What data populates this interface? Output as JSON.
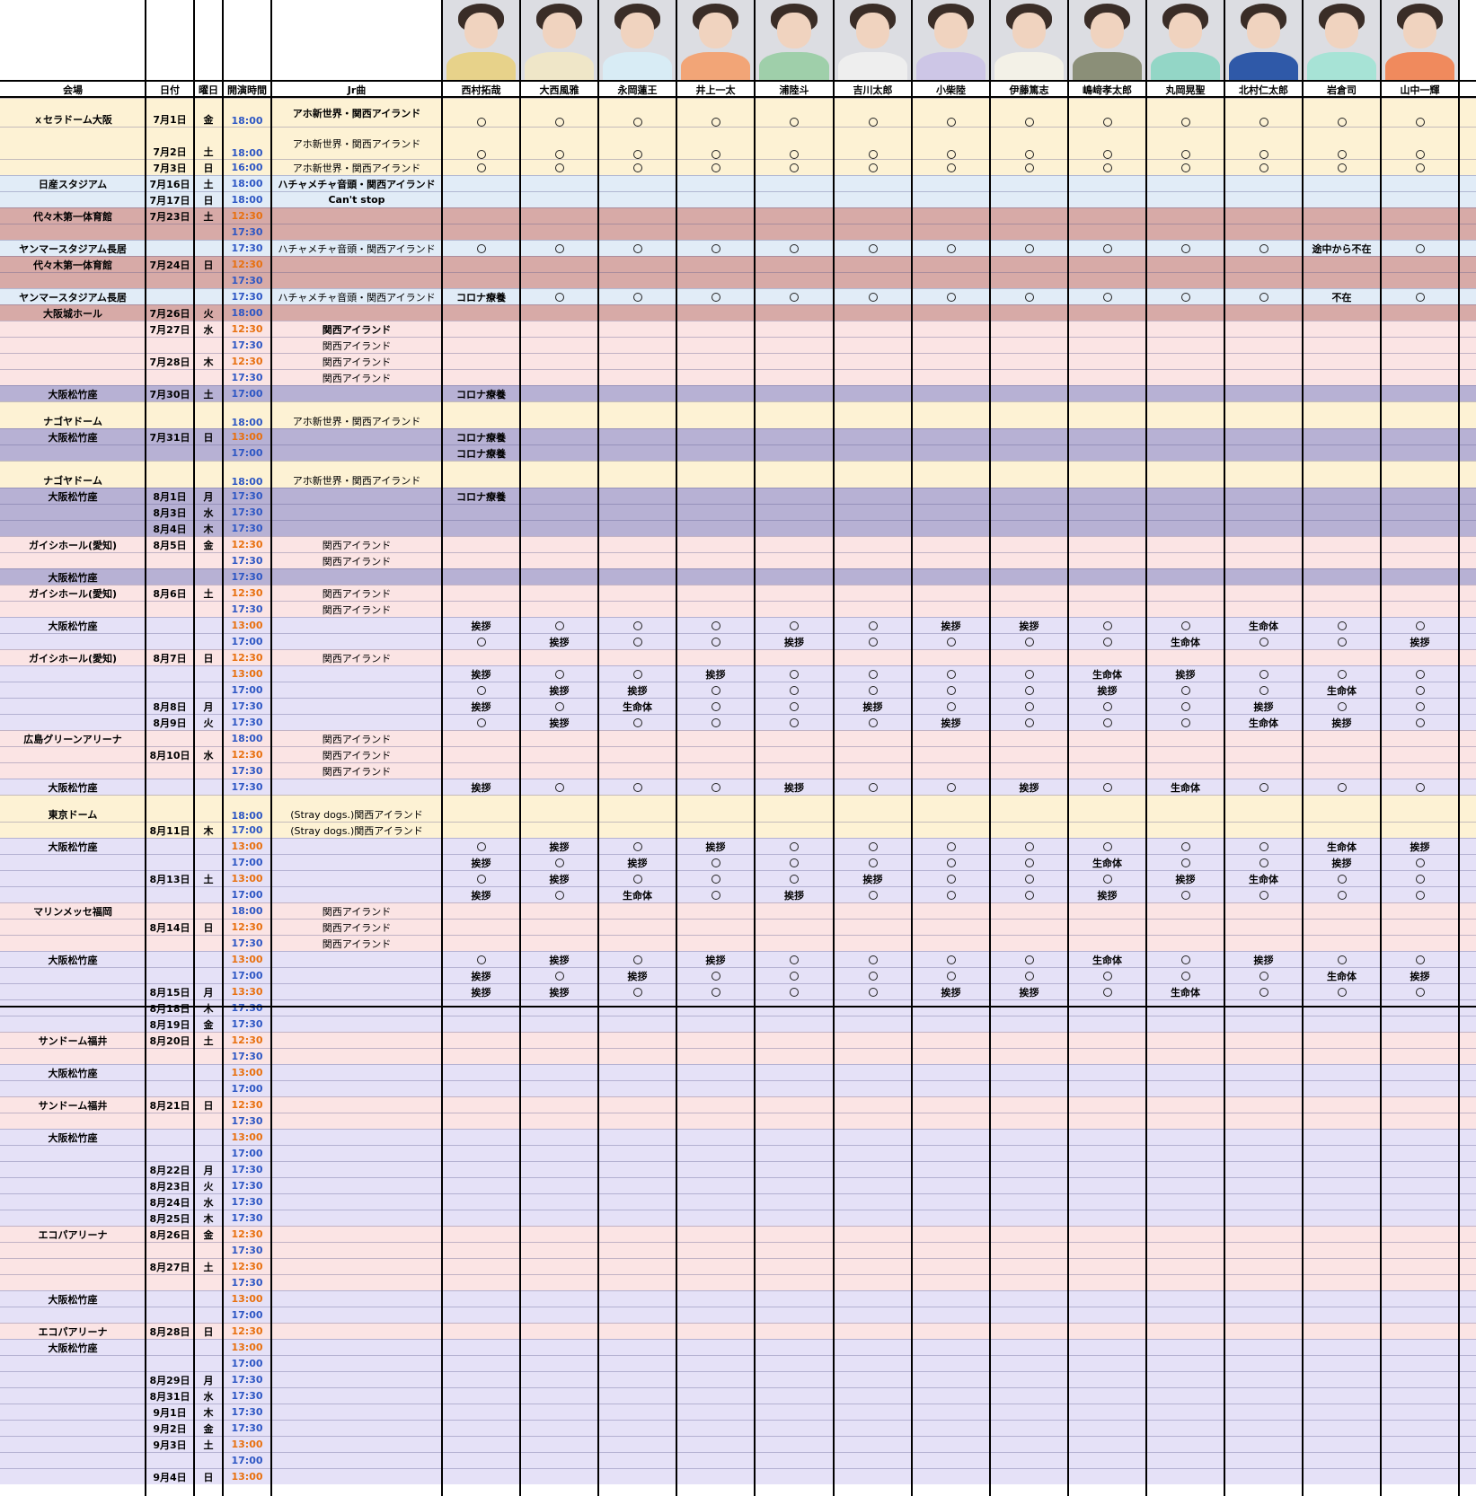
{
  "colors": {
    "yellow": "#fdf2d4",
    "blue": "#e1ecf7",
    "brown": "#d7aaa7",
    "pink": "#fbe4e4",
    "purple": "#b7b1d4",
    "lavender": "#e5e1f7",
    "white": "#ffffff",
    "blue_time": "#2e57c4",
    "orange_time": "#e8700f"
  },
  "headers": {
    "venue": "会場",
    "date": "日付",
    "weekday": "曜日",
    "time": "開演時間",
    "song": "Jr曲"
  },
  "members": [
    "西村拓哉",
    "大西風雅",
    "永岡蓮王",
    "井上一太",
    "浦陸斗",
    "吉川太郎",
    "小柴陸",
    "伊藤篤志",
    "嶋﨑孝太郎",
    "丸岡晃聖",
    "北村仁太郎",
    "岩倉司",
    "山中一輝"
  ],
  "photos": [
    {
      "name": "photo-nishimura",
      "shirt": "#e7d28a"
    },
    {
      "name": "photo-onishi",
      "shirt": "#efe6c8"
    },
    {
      "name": "photo-nagaoka",
      "shirt": "#d8ecf5"
    },
    {
      "name": "photo-inoue",
      "shirt": "#f2a577"
    },
    {
      "name": "photo-ura",
      "shirt": "#9fcfaa"
    },
    {
      "name": "photo-yoshikawa",
      "shirt": "#eeeeee"
    },
    {
      "name": "photo-koshiba",
      "shirt": "#cdc6e6"
    },
    {
      "name": "photo-ito",
      "shirt": "#f3f1e7"
    },
    {
      "name": "photo-shimazaki",
      "shirt": "#8b8f78"
    },
    {
      "name": "photo-maruoka",
      "shirt": "#93d6c6"
    },
    {
      "name": "photo-kitamura",
      "shirt": "#2f59a8"
    },
    {
      "name": "photo-iwakura",
      "shirt": "#a7e3d6"
    },
    {
      "name": "photo-yamanaka",
      "shirt": "#f08a5d"
    }
  ],
  "rows": [
    {
      "h": 32,
      "bg": "yellow",
      "venue": "ｘセラドーム大阪",
      "date": "7月1日",
      "day": "金",
      "time": "18:00",
      "tc": "blue",
      "song": "アホ新世界・関西アイランド",
      "sb": 1,
      "m": "OOOOOOOOOOOOO"
    },
    {
      "h": 36,
      "bg": "yellow",
      "date": "7月2日",
      "day": "土",
      "time": "18:00",
      "tc": "blue",
      "song": "アホ新世界・関西アイランド",
      "m": "OOOOOOOOOOOOO"
    },
    {
      "h": 18,
      "bg": "yellow",
      "date": "7月3日",
      "day": "日",
      "time": "16:00",
      "tc": "blue",
      "song": "アホ新世界・関西アイランド",
      "m": "OOOOOOOOOOOOO"
    },
    {
      "h": 18,
      "bg": "blue",
      "venue": "日産スタジアム",
      "date": "7月16日",
      "day": "土",
      "time": "18:00",
      "tc": "blue",
      "song": "ハチャメチャ音頭・関西アイランド",
      "sb": 1
    },
    {
      "h": 18,
      "bg": "blue",
      "date": "7月17日",
      "day": "日",
      "time": "18:00",
      "tc": "blue",
      "song": "Can't stop",
      "sb": 1
    },
    {
      "h": 18,
      "bg": "brown",
      "venue": "代々木第一体育館",
      "date": "7月23日",
      "day": "土",
      "time": "12:30",
      "tc": "orange"
    },
    {
      "h": 18,
      "bg": "brown",
      "time": "17:30",
      "tc": "blue"
    },
    {
      "h": 18,
      "bg": "blue",
      "venue": "ヤンマースタジアム長居",
      "time": "17:30",
      "tc": "blue",
      "song": "ハチャメチャ音頭・関西アイランド",
      "m": "OOOOOOOOOOO|途中から不在|O"
    },
    {
      "h": 18,
      "bg": "brown",
      "venue": "代々木第一体育館",
      "date": "7月24日",
      "day": "日",
      "time": "12:30",
      "tc": "orange"
    },
    {
      "h": 18,
      "bg": "brown",
      "time": "17:30",
      "tc": "blue"
    },
    {
      "h": 18,
      "bg": "blue",
      "venue": "ヤンマースタジアム長居",
      "time": "17:30",
      "tc": "blue",
      "song": "ハチャメチャ音頭・関西アイランド",
      "m": "コロナ療養|OOOOOOOOOO|不在|O"
    },
    {
      "h": 18,
      "bg": "brown",
      "venue": "大阪城ホール",
      "date": "7月26日",
      "day": "火",
      "time": "18:00",
      "tc": "blue"
    },
    {
      "h": 18,
      "bg": "pink",
      "date": "7月27日",
      "day": "水",
      "time": "12:30",
      "tc": "orange",
      "song": "関西アイランド",
      "sb": 1
    },
    {
      "h": 18,
      "bg": "pink",
      "time": "17:30",
      "tc": "blue",
      "song": "関西アイランド"
    },
    {
      "h": 18,
      "bg": "pink",
      "date": "7月28日",
      "day": "木",
      "time": "12:30",
      "tc": "orange",
      "song": "関西アイランド"
    },
    {
      "h": 18,
      "bg": "pink",
      "time": "17:30",
      "tc": "blue",
      "song": "関西アイランド"
    },
    {
      "h": 18,
      "bg": "purple",
      "venue": "大阪松竹座",
      "date": "7月30日",
      "day": "土",
      "time": "17:00",
      "tc": "blue",
      "m": "コロナ療養|"
    },
    {
      "h": 30,
      "bg": "yellow",
      "venue": "ナゴヤドーム",
      "time": "18:00",
      "tc": "blue",
      "song": "アホ新世界・関西アイランド"
    },
    {
      "h": 18,
      "bg": "purple",
      "venue": "大阪松竹座",
      "date": "7月31日",
      "day": "日",
      "time": "13:00",
      "tc": "orange",
      "m": "コロナ療養|"
    },
    {
      "h": 18,
      "bg": "purple",
      "time": "17:00",
      "tc": "blue",
      "m": "コロナ療養|"
    },
    {
      "h": 30,
      "bg": "yellow",
      "venue": "ナゴヤドーム",
      "time": "18:00",
      "tc": "blue",
      "song": "アホ新世界・関西アイランド"
    },
    {
      "h": 18,
      "bg": "purple",
      "venue": "大阪松竹座",
      "date": "8月1日",
      "day": "月",
      "time": "17:30",
      "tc": "blue",
      "m": "コロナ療養|"
    },
    {
      "h": 18,
      "bg": "purple",
      "date": "8月3日",
      "day": "水",
      "time": "17:30",
      "tc": "blue"
    },
    {
      "h": 18,
      "bg": "purple",
      "date": "8月4日",
      "day": "木",
      "time": "17:30",
      "tc": "blue"
    },
    {
      "h": 18,
      "bg": "pink",
      "venue": "ガイシホール(愛知)",
      "date": "8月5日",
      "day": "金",
      "time": "12:30",
      "tc": "orange",
      "song": "関西アイランド"
    },
    {
      "h": 18,
      "bg": "pink",
      "time": "17:30",
      "tc": "blue",
      "song": "関西アイランド"
    },
    {
      "h": 18,
      "bg": "purple",
      "venue": "大阪松竹座",
      "time": "17:30",
      "tc": "blue"
    },
    {
      "h": 18,
      "bg": "pink",
      "venue": "ガイシホール(愛知)",
      "date": "8月6日",
      "day": "土",
      "time": "12:30",
      "tc": "orange",
      "song": "関西アイランド"
    },
    {
      "h": 18,
      "bg": "pink",
      "time": "17:30",
      "tc": "blue",
      "song": "関西アイランド"
    },
    {
      "h": 18,
      "bg": "lavender",
      "venue": "大阪松竹座",
      "time": "13:00",
      "tc": "orange",
      "m": "挨拶|OOOO|O|挨拶|挨拶|OO|生命体|OO"
    },
    {
      "h": 18,
      "bg": "lavender",
      "time": "17:00",
      "tc": "blue",
      "m": "O|挨拶|OO|挨拶|OOOO|生命体|OO|挨拶"
    },
    {
      "h": 18,
      "bg": "pink",
      "venue": "ガイシホール(愛知)",
      "date": "8月7日",
      "day": "日",
      "time": "12:30",
      "tc": "orange",
      "song": "関西アイランド"
    },
    {
      "h": 18,
      "bg": "lavender",
      "time": "13:00",
      "tc": "orange",
      "m": "挨拶|OO|挨拶|OOOO|生命体|挨拶|OOO"
    },
    {
      "h": 18,
      "bg": "lavender",
      "time": "17:00",
      "tc": "blue",
      "m": "O|挨拶|挨拶|OOOOO|挨拶|OO|生命体|O"
    },
    {
      "h": 18,
      "bg": "lavender",
      "date": "8月8日",
      "day": "月",
      "time": "17:30",
      "tc": "blue",
      "m": "挨拶|O|生命体|OO|挨拶|OOOO|挨拶|OO"
    },
    {
      "h": 18,
      "bg": "lavender",
      "date": "8月9日",
      "day": "火",
      "time": "17:30",
      "tc": "blue",
      "m": "O|挨拶|OOOO|挨拶|OOO|生命体|挨拶|O"
    },
    {
      "h": 18,
      "bg": "pink",
      "venue": "広島グリーンアリーナ",
      "time": "18:00",
      "tc": "blue",
      "song": "関西アイランド"
    },
    {
      "h": 18,
      "bg": "pink",
      "date": "8月10日",
      "day": "水",
      "time": "12:30",
      "tc": "orange",
      "song": "関西アイランド"
    },
    {
      "h": 18,
      "bg": "pink",
      "time": "17:30",
      "tc": "blue",
      "song": "関西アイランド"
    },
    {
      "h": 18,
      "bg": "lavender",
      "venue": "大阪松竹座",
      "time": "17:30",
      "tc": "blue",
      "m": "挨拶|OOO|挨拶|OO|挨拶|O|生命体|OOO"
    },
    {
      "h": 30,
      "bg": "yellow",
      "venue": "東京ドーム",
      "time": "18:00",
      "tc": "blue",
      "song": "(Stray dogs.)関西アイランド"
    },
    {
      "h": 18,
      "bg": "yellow",
      "date": "8月11日",
      "day": "木",
      "time": "17:00",
      "tc": "blue",
      "song": "(Stray dogs.)関西アイランド"
    },
    {
      "h": 18,
      "bg": "lavender",
      "venue": "大阪松竹座",
      "time": "13:00",
      "tc": "orange",
      "m": "O|挨拶|O|挨拶|OOOOOOO|生命体|挨拶"
    },
    {
      "h": 18,
      "bg": "lavender",
      "time": "17:00",
      "tc": "blue",
      "m": "挨拶|O|挨拶|OOOOO|生命体|OO|挨拶|O"
    },
    {
      "h": 18,
      "bg": "lavender",
      "date": "8月13日",
      "day": "土",
      "time": "13:00",
      "tc": "orange",
      "m": "O|挨拶|OOO|挨拶|OOO|挨拶|生命体|OO"
    },
    {
      "h": 18,
      "bg": "lavender",
      "time": "17:00",
      "tc": "blue",
      "m": "挨拶|O|生命体|O|挨拶|OOO|挨拶|OOOO"
    },
    {
      "h": 18,
      "bg": "pink",
      "venue": "マリンメッセ福岡",
      "time": "18:00",
      "tc": "blue",
      "song": "関西アイランド"
    },
    {
      "h": 18,
      "bg": "pink",
      "date": "8月14日",
      "day": "日",
      "time": "12:30",
      "tc": "orange",
      "song": "関西アイランド"
    },
    {
      "h": 18,
      "bg": "pink",
      "time": "17:30",
      "tc": "blue",
      "song": "関西アイランド"
    },
    {
      "h": 18,
      "bg": "lavender",
      "venue": "大阪松竹座",
      "time": "13:00",
      "tc": "orange",
      "m": "O|挨拶|O|挨拶|OOOO|生命体|O|挨拶|OO"
    },
    {
      "h": 18,
      "bg": "lavender",
      "time": "17:00",
      "tc": "blue",
      "m": "挨拶|O|挨拶|OOOOOOOO|生命体|挨拶"
    },
    {
      "h": 18,
      "bg": "lavender",
      "date": "8月15日",
      "day": "月",
      "time": "13:30",
      "tc": "orange",
      "m": "挨拶|挨拶|OOOO|挨拶|挨拶|O|生命体|OOO"
    },
    {
      "h": 18,
      "bg": "lavender",
      "date": "8月18日",
      "day": "木",
      "time": "17:30",
      "tc": "blue"
    },
    {
      "h": 18,
      "bg": "lavender",
      "date": "8月19日",
      "day": "金",
      "time": "17:30",
      "tc": "blue"
    },
    {
      "h": 18,
      "bg": "pink",
      "venue": "サンドーム福井",
      "date": "8月20日",
      "day": "土",
      "time": "12:30",
      "tc": "orange"
    },
    {
      "h": 18,
      "bg": "pink",
      "time": "17:30",
      "tc": "blue"
    },
    {
      "h": 18,
      "bg": "lavender",
      "venue": "大阪松竹座",
      "time": "13:00",
      "tc": "orange"
    },
    {
      "h": 18,
      "bg": "lavender",
      "time": "17:00",
      "tc": "blue"
    },
    {
      "h": 18,
      "bg": "pink",
      "venue": "サンドーム福井",
      "date": "8月21日",
      "day": "日",
      "time": "12:30",
      "tc": "orange"
    },
    {
      "h": 18,
      "bg": "pink",
      "time": "17:30",
      "tc": "blue"
    },
    {
      "h": 18,
      "bg": "lavender",
      "venue": "大阪松竹座",
      "time": "13:00",
      "tc": "orange"
    },
    {
      "h": 18,
      "bg": "lavender",
      "time": "17:00",
      "tc": "blue"
    },
    {
      "h": 18,
      "bg": "lavender",
      "date": "8月22日",
      "day": "月",
      "time": "17:30",
      "tc": "blue"
    },
    {
      "h": 18,
      "bg": "lavender",
      "date": "8月23日",
      "day": "火",
      "time": "17:30",
      "tc": "blue"
    },
    {
      "h": 18,
      "bg": "lavender",
      "date": "8月24日",
      "day": "水",
      "time": "17:30",
      "tc": "blue"
    },
    {
      "h": 18,
      "bg": "lavender",
      "date": "8月25日",
      "day": "木",
      "time": "17:30",
      "tc": "blue"
    },
    {
      "h": 18,
      "bg": "pink",
      "venue": "エコパアリーナ",
      "date": "8月26日",
      "day": "金",
      "time": "12:30",
      "tc": "orange"
    },
    {
      "h": 18,
      "bg": "pink",
      "time": "17:30",
      "tc": "blue"
    },
    {
      "h": 18,
      "bg": "pink",
      "date": "8月27日",
      "day": "土",
      "time": "12:30",
      "tc": "orange"
    },
    {
      "h": 18,
      "bg": "pink",
      "time": "17:30",
      "tc": "blue"
    },
    {
      "h": 18,
      "bg": "lavender",
      "venue": "大阪松竹座",
      "time": "13:00",
      "tc": "orange"
    },
    {
      "h": 18,
      "bg": "lavender",
      "time": "17:00",
      "tc": "blue"
    },
    {
      "h": 18,
      "bg": "pink",
      "venue": "エコパアリーナ",
      "date": "8月28日",
      "day": "日",
      "time": "12:30",
      "tc": "orange"
    },
    {
      "h": 18,
      "bg": "lavender",
      "venue": "大阪松竹座",
      "time": "13:00",
      "tc": "orange"
    },
    {
      "h": 18,
      "bg": "lavender",
      "time": "17:00",
      "tc": "blue"
    },
    {
      "h": 18,
      "bg": "lavender",
      "date": "8月29日",
      "day": "月",
      "time": "17:30",
      "tc": "blue"
    },
    {
      "h": 18,
      "bg": "lavender",
      "date": "8月31日",
      "day": "水",
      "time": "17:30",
      "tc": "blue"
    },
    {
      "h": 18,
      "bg": "lavender",
      "date": "9月1日",
      "day": "木",
      "time": "17:30",
      "tc": "blue"
    },
    {
      "h": 18,
      "bg": "lavender",
      "date": "9月2日",
      "day": "金",
      "time": "17:30",
      "tc": "blue"
    },
    {
      "h": 18,
      "bg": "lavender",
      "date": "9月3日",
      "day": "土",
      "time": "13:00",
      "tc": "orange"
    },
    {
      "h": 18,
      "bg": "lavender",
      "time": "17:00",
      "tc": "blue"
    },
    {
      "h": 18,
      "bg": "lavender",
      "date": "9月4日",
      "day": "日",
      "time": "13:00",
      "tc": "orange"
    }
  ]
}
